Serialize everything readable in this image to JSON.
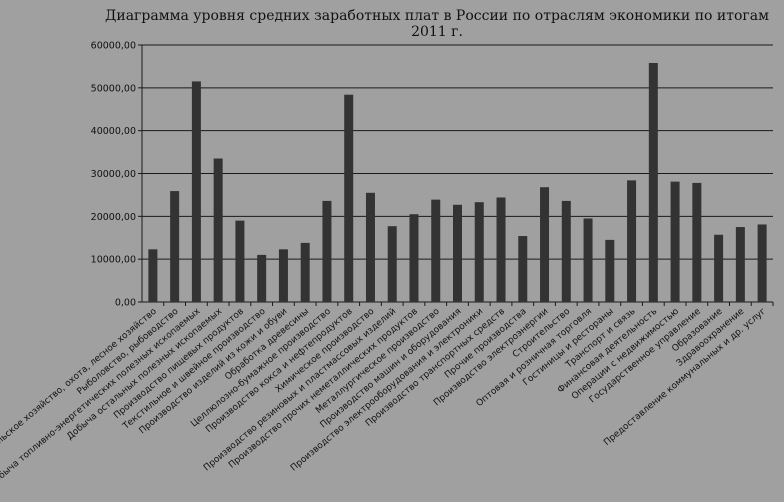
{
  "chart_data": {
    "type": "bar",
    "title": "Диаграмма уровня средних заработных плат в России по отраслям экономики  по итогам 2011 г.",
    "xlabel": "",
    "ylabel": "",
    "ylim": [
      0,
      60000
    ],
    "yticks": [
      0,
      10000,
      20000,
      30000,
      40000,
      50000,
      60000
    ],
    "ytick_labels": [
      "0,00",
      "10000,00",
      "20000,00",
      "30000,00",
      "40000,00",
      "50000,00",
      "60000,00"
    ],
    "grid": true,
    "bar_color": "#333333",
    "categories": [
      "Сельское хозяйство, охота, лесное хозяйство",
      "Рыболовство, рыбоводство",
      "Добыча топливно-энергетических полезных ископаемых",
      "Добыча остальных полезных ископаемых",
      "Производство пищевых продуктов",
      "Текстильное и швейное производство",
      "Производство изделий из кожи и обуви",
      "Обработка древесины",
      "Целлюлозно-бумажное производство",
      "Производство кокса и нефтепродуктов",
      "Химическое производство",
      "Производство резиновых и пластмассовых изделий",
      "Производство прочих неметаллических продуктов",
      "Металлургическое производство",
      "Производство машин и оборудования",
      "Производство электрооборудования  и электроники",
      "Производство транспортных средств",
      "Прочие производства",
      "Производство электроэнергии",
      "Строительство",
      "Оптовая и розничная торговля",
      "Гостиницы и рестораны",
      "Транспорт и связь",
      "Финансовая деятельность",
      "Операции с недвижимостью",
      "Государственное управление",
      "Образование",
      "Здравоохранение",
      "Предоставление коммунальных и др. услуг"
    ],
    "values": [
      12300,
      25900,
      51500,
      33500,
      19000,
      11000,
      12300,
      13800,
      23600,
      48400,
      25500,
      17700,
      20500,
      23900,
      22700,
      23300,
      24400,
      15400,
      26800,
      23600,
      19500,
      14500,
      28400,
      55800,
      28100,
      27800,
      15700,
      17500,
      18100
    ]
  }
}
